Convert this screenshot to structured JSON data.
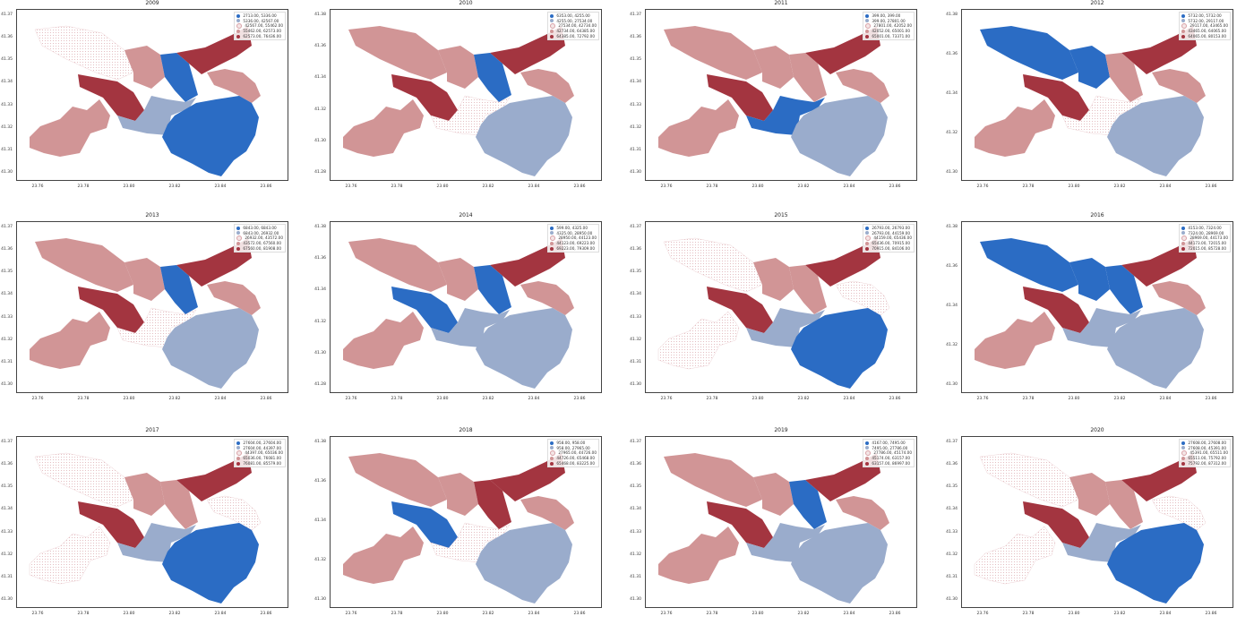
{
  "colors": {
    "c0": "#2b6cc4",
    "c1": "#9aaccc",
    "c2": "#f4e6e6",
    "c3": "#d19596",
    "c4": "#a33540"
  },
  "x_ticks": [
    "23.76",
    "23.78",
    "23.80",
    "23.82",
    "23.84",
    "23.86"
  ],
  "panels": [
    {
      "title": "2009",
      "y_ticks": [
        "41.37",
        "41.36",
        "41.35",
        "41.34",
        "41.33",
        "41.32",
        "41.31",
        "41.30"
      ],
      "legend": [
        "2713.00, 5336.00",
        "5336.00, 42567.00",
        "42567.00, 55462.00",
        "55462.00, 62573.00",
        "62573.00, 76436.00"
      ],
      "regions": {
        "nw": 2,
        "north": 3,
        "bar": 0,
        "ne": 4,
        "wc": 4,
        "center": 1,
        "sw": 3,
        "se": 0,
        "ef": 3
      }
    },
    {
      "title": "2010",
      "y_ticks": [
        "41.38",
        "41.36",
        "41.34",
        "41.32",
        "41.30",
        "41.28"
      ],
      "legend": [
        "6353.00, 4255.00",
        "4255.00, 27534.00",
        "27534.00, 42734.00",
        "42734.00, 64385.00",
        "64385.00, 72792.00"
      ],
      "regions": {
        "nw": 3,
        "north": 3,
        "bar": 0,
        "ne": 4,
        "wc": 4,
        "center": 2,
        "sw": 3,
        "se": 1,
        "ef": 3
      }
    },
    {
      "title": "2011",
      "y_ticks": [
        "41.37",
        "41.36",
        "41.35",
        "41.34",
        "41.33",
        "41.32",
        "41.31",
        "41.30"
      ],
      "legend": [
        "399.00, 399.00",
        "399.00, 27801.00",
        "27801.00, 42052.00",
        "42052.00, 65001.00",
        "65001.00, 73371.00"
      ],
      "regions": {
        "nw": 3,
        "north": 3,
        "bar": 3,
        "ne": 4,
        "wc": 4,
        "center": 0,
        "sw": 3,
        "se": 1,
        "ef": 3
      }
    },
    {
      "title": "2012",
      "y_ticks": [
        "41.38",
        "41.36",
        "41.34",
        "41.32",
        "41.30"
      ],
      "legend": [
        "5732.00, 5732.00",
        "5732.00, 29117.00",
        "29117.00, 43465.00",
        "43465.00, 64065.00",
        "64065.00, 80153.00"
      ],
      "regions": {
        "nw": 0,
        "north": 0,
        "bar": 3,
        "ne": 4,
        "wc": 4,
        "center": 2,
        "sw": 3,
        "se": 1,
        "ef": 3
      }
    },
    {
      "title": "2013",
      "y_ticks": [
        "41.37",
        "41.36",
        "41.35",
        "41.34",
        "41.33",
        "41.32",
        "41.31",
        "41.30"
      ],
      "legend": [
        "6843.00, 6843.00",
        "6843.00, 26932.00",
        "26932.00, 43572.00",
        "43572.00, 67560.00",
        "67560.00, 81908.00"
      ],
      "regions": {
        "nw": 3,
        "north": 3,
        "bar": 0,
        "ne": 4,
        "wc": 4,
        "center": 2,
        "sw": 3,
        "se": 1,
        "ef": 3
      }
    },
    {
      "title": "2014",
      "y_ticks": [
        "41.38",
        "41.36",
        "41.34",
        "41.32",
        "41.30",
        "41.28"
      ],
      "legend": [
        "599.00, 4325.00",
        "4325.00, 28950.00",
        "28950.00, 44123.00",
        "44123.00, 69223.00",
        "69223.00, 79309.00"
      ],
      "regions": {
        "nw": 3,
        "north": 3,
        "bar": 0,
        "ne": 4,
        "wc": 0,
        "center": 1,
        "sw": 3,
        "se": 1,
        "ef": 3
      }
    },
    {
      "title": "2015",
      "y_ticks": [
        "41.37",
        "41.36",
        "41.35",
        "41.34",
        "41.33",
        "41.32",
        "41.31",
        "41.30"
      ],
      "legend": [
        "26793.00, 26793.00",
        "26793.00, 44159.00",
        "44159.00, 65436.00",
        "65436.00, 70915.00",
        "70915.00, 84106.00"
      ],
      "regions": {
        "nw": 2,
        "north": 3,
        "bar": 3,
        "ne": 4,
        "wc": 4,
        "center": 1,
        "sw": 2,
        "se": 0,
        "ef": 2
      }
    },
    {
      "title": "2016",
      "y_ticks": [
        "41.38",
        "41.36",
        "41.34",
        "41.32",
        "41.30"
      ],
      "legend": [
        "4153.00, 7324.00",
        "7324.00, 28969.00",
        "28969.00, 44173.00",
        "44173.00, 72015.00",
        "72015.00, 85728.00"
      ],
      "regions": {
        "nw": 0,
        "north": 0,
        "bar": 0,
        "ne": 4,
        "wc": 4,
        "center": 1,
        "sw": 3,
        "se": 1,
        "ef": 3
      }
    },
    {
      "title": "2017",
      "y_ticks": [
        "41.37",
        "41.36",
        "41.35",
        "41.34",
        "41.33",
        "41.32",
        "41.31",
        "41.30"
      ],
      "legend": [
        "27604.00, 27604.00",
        "27604.00, 44397.00",
        "44397.00, 65036.00",
        "65036.00, 76081.00",
        "76081.00, 85579.00"
      ],
      "regions": {
        "nw": 2,
        "north": 3,
        "bar": 3,
        "ne": 4,
        "wc": 4,
        "center": 1,
        "sw": 2,
        "se": 0,
        "ef": 2
      }
    },
    {
      "title": "2018",
      "y_ticks": [
        "41.38",
        "41.36",
        "41.34",
        "41.32",
        "41.30"
      ],
      "legend": [
        "958.00, 958.00",
        "958.00, 27965.00",
        "27965.00, 44726.00",
        "44726.00, 65468.00",
        "65468.00, 83225.00"
      ],
      "regions": {
        "nw": 3,
        "north": 3,
        "bar": 4,
        "ne": 4,
        "wc": 0,
        "center": 2,
        "sw": 3,
        "se": 1,
        "ef": 3
      }
    },
    {
      "title": "2019",
      "y_ticks": [
        "41.37",
        "41.36",
        "41.35",
        "41.34",
        "41.33",
        "41.32",
        "41.31",
        "41.30"
      ],
      "legend": [
        "4167.00, 7495.00",
        "7495.00, 27786.00",
        "27786.00, 45174.00",
        "45174.00, 63157.00",
        "63157.00, 86997.00"
      ],
      "regions": {
        "nw": 3,
        "north": 3,
        "bar": 0,
        "ne": 4,
        "wc": 4,
        "center": 1,
        "sw": 3,
        "se": 1,
        "ef": 3
      }
    },
    {
      "title": "2020",
      "y_ticks": [
        "41.37",
        "41.36",
        "41.35",
        "41.34",
        "41.33",
        "41.32",
        "41.31",
        "41.30"
      ],
      "legend": [
        "27608.00, 27608.00",
        "27608.00, 45391.00",
        "45391.00, 65511.00",
        "65511.00, 75792.00",
        "75792.00, 87312.00"
      ],
      "regions": {
        "nw": 2,
        "north": 3,
        "bar": 3,
        "ne": 4,
        "wc": 4,
        "center": 1,
        "sw": 2,
        "se": 0,
        "ef": 2
      }
    }
  ]
}
